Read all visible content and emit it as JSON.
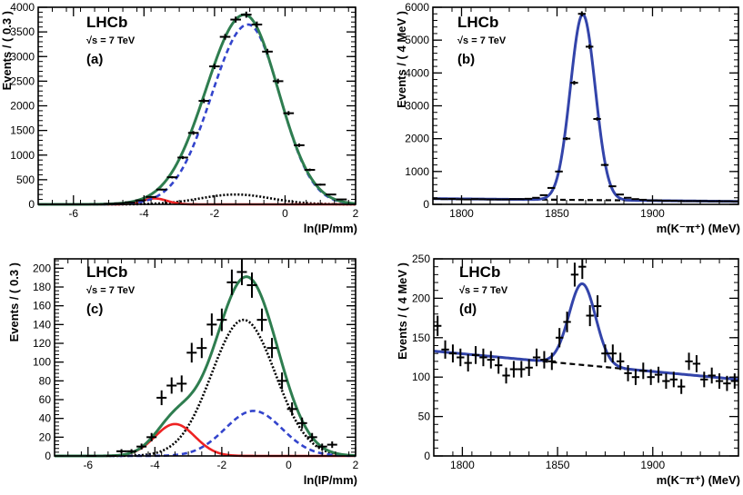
{
  "chart_data": [
    {
      "type": "line",
      "panel_label": "(a)",
      "experiment": "LHCb",
      "energy_label": "√s = 7 TeV",
      "xlabel": "ln(IP/mm)",
      "ylabel": "Events / ( 0.3 )",
      "xlim": [
        -7,
        2
      ],
      "ylim": [
        0,
        4000
      ],
      "xticks": [
        -6,
        -4,
        -2,
        0,
        2
      ],
      "yticks": [
        0,
        500,
        1000,
        1500,
        2000,
        2500,
        3000,
        3500,
        4000
      ],
      "data_points": {
        "x": [
          -6.5,
          -6.2,
          -5.9,
          -5.6,
          -5.3,
          -5.0,
          -4.7,
          -4.4,
          -4.1,
          -3.8,
          -3.5,
          -3.2,
          -2.9,
          -2.6,
          -2.3,
          -2.0,
          -1.7,
          -1.4,
          -1.1,
          -0.8,
          -0.5,
          -0.2,
          0.1,
          0.4,
          0.7,
          1.0,
          1.3,
          1.6
        ],
        "y": [
          0,
          0,
          0,
          0,
          0,
          10,
          20,
          40,
          80,
          150,
          300,
          550,
          950,
          1450,
          2100,
          2800,
          3400,
          3750,
          3850,
          3650,
          3100,
          2500,
          1850,
          1200,
          700,
          400,
          200,
          100
        ]
      },
      "curves": [
        {
          "role": "total",
          "color": "#2e7d4f",
          "style": "solid",
          "mu": -1.15,
          "sigma": 0.95,
          "amp": 3850,
          "tail": 0.15
        },
        {
          "role": "signal",
          "color": "#3344cc",
          "style": "dashed",
          "mu": -1.05,
          "sigma": 0.9,
          "amp": 3650,
          "tail": 0.15
        },
        {
          "role": "secondary",
          "color": "#000000",
          "style": "dotted",
          "mu": -1.4,
          "sigma": 1.0,
          "amp": 200,
          "tail": 0.0
        },
        {
          "role": "background",
          "color": "#ee2222",
          "style": "solid",
          "mu": -3.7,
          "sigma": 0.35,
          "amp": 120,
          "tail": 0.0
        }
      ]
    },
    {
      "type": "line",
      "panel_label": "(b)",
      "experiment": "LHCb",
      "energy_label": "√s = 7 TeV",
      "xlabel": "m(K⁻π⁺) (MeV)",
      "ylabel": "Events / ( 4 MeV )",
      "xlim": [
        1785,
        1945
      ],
      "ylim": [
        0,
        6000
      ],
      "xticks": [
        1800,
        1850,
        1900
      ],
      "yticks": [
        0,
        1000,
        2000,
        3000,
        4000,
        5000,
        6000
      ],
      "data_points": {
        "x": [
          1787,
          1791,
          1795,
          1799,
          1803,
          1807,
          1811,
          1815,
          1819,
          1823,
          1827,
          1831,
          1835,
          1839,
          1843,
          1847,
          1851,
          1855,
          1859,
          1863,
          1867,
          1871,
          1875,
          1879,
          1883,
          1887,
          1891,
          1895,
          1899,
          1903,
          1907,
          1911,
          1915,
          1919,
          1923,
          1927,
          1931,
          1935,
          1939,
          1943
        ],
        "y": [
          170,
          160,
          165,
          155,
          150,
          160,
          155,
          150,
          150,
          150,
          160,
          160,
          170,
          200,
          280,
          500,
          1000,
          2000,
          3700,
          5800,
          4800,
          2600,
          1200,
          550,
          300,
          200,
          160,
          140,
          120,
          120,
          110,
          110,
          100,
          100,
          100,
          100,
          95,
          95,
          95,
          90
        ]
      },
      "curves": [
        {
          "role": "total",
          "color": "#3344aa",
          "style": "solid",
          "mu": 1863.5,
          "sigma": 6.5,
          "amp": 5650,
          "bkg0": 175,
          "bkg1": 90
        },
        {
          "role": "background",
          "color": "#000000",
          "style": "dashed",
          "bkg0": 175,
          "bkg1": 90
        }
      ]
    },
    {
      "type": "line",
      "panel_label": "(c)",
      "experiment": "LHCb",
      "energy_label": "√s = 7 TeV",
      "xlabel": "ln(IP/mm)",
      "ylabel": "Events / ( 0.3 )",
      "xlim": [
        -7,
        2
      ],
      "ylim": [
        0,
        210
      ],
      "xticks": [
        -6,
        -4,
        -2,
        0,
        2
      ],
      "yticks": [
        0,
        20,
        40,
        60,
        80,
        100,
        120,
        140,
        160,
        180,
        200
      ],
      "data_points": {
        "x": [
          -5.9,
          -5.3,
          -5.0,
          -4.7,
          -4.4,
          -4.1,
          -3.8,
          -3.5,
          -3.2,
          -2.9,
          -2.6,
          -2.3,
          -2.0,
          -1.7,
          -1.4,
          -1.1,
          -0.8,
          -0.5,
          -0.2,
          0.1,
          0.4,
          0.7,
          1.0,
          1.3
        ],
        "y": [
          0,
          0,
          5,
          5,
          10,
          20,
          62,
          75,
          77,
          110,
          115,
          140,
          145,
          185,
          196,
          182,
          145,
          115,
          80,
          50,
          35,
          20,
          10,
          12
        ]
      },
      "curves": [
        {
          "role": "total",
          "color": "#2e7d4f",
          "style": "solid"
        },
        {
          "role": "secondary",
          "color": "#000000",
          "style": "dotted",
          "mu": -1.35,
          "sigma": 0.95,
          "amp": 145
        },
        {
          "role": "signal",
          "color": "#3344cc",
          "style": "dashed",
          "mu": -1.05,
          "sigma": 0.85,
          "amp": 48
        },
        {
          "role": "background",
          "color": "#ee2222",
          "style": "solid",
          "mu": -3.4,
          "sigma": 0.6,
          "amp": 34
        }
      ]
    },
    {
      "type": "line",
      "panel_label": "(d)",
      "experiment": "LHCb",
      "energy_label": "√s = 7 TeV",
      "xlabel": "m(K⁻π⁺) (MeV)",
      "ylabel": "Events / ( 4 MeV )",
      "xlim": [
        1785,
        1945
      ],
      "ylim": [
        0,
        250
      ],
      "xticks": [
        1800,
        1850,
        1900
      ],
      "yticks": [
        0,
        50,
        100,
        150,
        200,
        250
      ],
      "data_points": {
        "x": [
          1787,
          1791,
          1795,
          1799,
          1803,
          1807,
          1811,
          1815,
          1819,
          1823,
          1827,
          1831,
          1835,
          1839,
          1843,
          1847,
          1851,
          1855,
          1859,
          1863,
          1867,
          1871,
          1875,
          1879,
          1883,
          1887,
          1891,
          1895,
          1899,
          1903,
          1907,
          1911,
          1915,
          1919,
          1923,
          1927,
          1931,
          1935,
          1939,
          1943
        ],
        "y": [
          165,
          135,
          130,
          125,
          118,
          128,
          125,
          122,
          115,
          102,
          110,
          110,
          112,
          125,
          122,
          120,
          150,
          170,
          230,
          240,
          178,
          190,
          130,
          130,
          120,
          105,
          100,
          108,
          100,
          103,
          95,
          97,
          88,
          120,
          117,
          97,
          102,
          95,
          92,
          95
        ]
      },
      "curves": [
        {
          "role": "total",
          "color": "#3344aa",
          "style": "solid",
          "mu": 1863,
          "sigma": 7,
          "amp": 103,
          "bkg0": 133,
          "bkg1": 97
        },
        {
          "role": "background",
          "color": "#000000",
          "style": "dashed",
          "bkg0": 133,
          "bkg1": 97
        }
      ]
    }
  ]
}
